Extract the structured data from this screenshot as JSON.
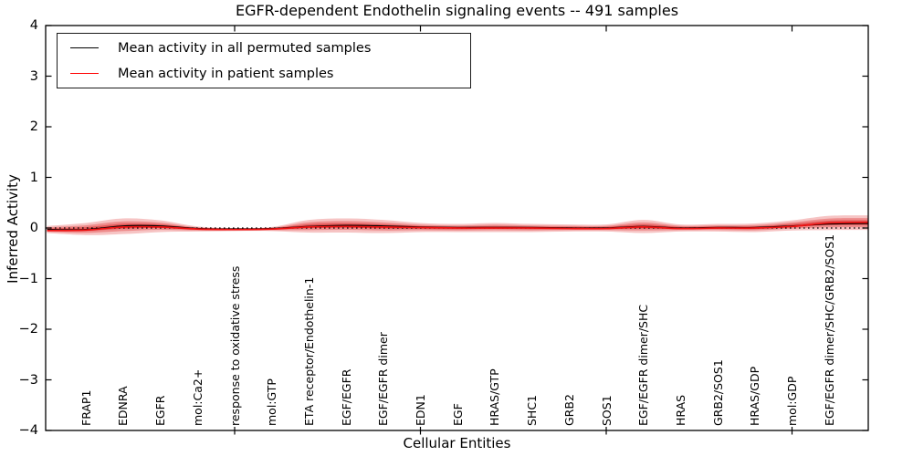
{
  "figure": {
    "title": "EGFR-dependent Endothelin signaling events -- 491 samples",
    "xlabel": "Cellular Entities",
    "ylabel": "Inferred Activity"
  },
  "legend": {
    "items": [
      {
        "label": "Mean activity in all permuted samples",
        "color": "#000000"
      },
      {
        "label": "Mean activity in patient samples",
        "color": "#ff0000"
      }
    ]
  },
  "axes": {
    "ytick_labels": [
      "4",
      "3",
      "2",
      "1",
      "0",
      "−1",
      "−2",
      "−3",
      "−4"
    ],
    "ytick_values": [
      4,
      3,
      2,
      1,
      0,
      -1,
      -2,
      -3,
      -4
    ],
    "xtick_values": [
      5,
      10,
      15,
      20
    ],
    "ylim": [
      -4,
      4
    ]
  },
  "chart_data": {
    "type": "line",
    "title": "EGFR-dependent Endothelin signaling events -- 491 samples",
    "xlabel": "Cellular Entities",
    "ylabel": "Inferred Activity",
    "ylim": [
      -4,
      4
    ],
    "grid": false,
    "legend_position": "upper left",
    "zero_line": {
      "style": "dotted",
      "color": "#000000",
      "y": 0
    },
    "categories": [
      "FRAP1",
      "EDNRA",
      "EGFR",
      "mol:Ca2+",
      "response to oxidative stress",
      "mol:GTP",
      "ETA receptor/Endothelin-1",
      "EGF/EGFR",
      "EGF/EGFR dimer",
      "EDN1",
      "EGF",
      "HRAS/GTP",
      "SHC1",
      "GRB2",
      "SOS1",
      "EGF/EGFR dimer/SHC",
      "HRAS",
      "GRB2/SOS1",
      "HRAS/GDP",
      "mol:GDP",
      "EGF/EGFR dimer/SHC/GRB2/SOS1"
    ],
    "x": [
      -0.05,
      1,
      2,
      3,
      4,
      5,
      6,
      7,
      8,
      9,
      10,
      11,
      12,
      13,
      14,
      15,
      16,
      17,
      18,
      19,
      20,
      21,
      22.05
    ],
    "series": [
      {
        "name": "Mean activity in all permuted samples",
        "color": "#000000",
        "values": [
          -0.03,
          -0.03,
          0.04,
          0.04,
          -0.01,
          -0.02,
          -0.01,
          0.03,
          0.05,
          0.04,
          0.02,
          0.01,
          0.01,
          0.01,
          0.0,
          0.0,
          0.03,
          0.0,
          0.01,
          0.01,
          0.04,
          0.08,
          0.09
        ]
      },
      {
        "name": "Mean activity in patient samples",
        "color": "#ee1111",
        "values": [
          -0.05,
          -0.04,
          0.02,
          0.02,
          -0.02,
          -0.03,
          -0.02,
          0.02,
          0.03,
          0.02,
          0.01,
          0.0,
          0.0,
          0.0,
          -0.01,
          -0.01,
          0.02,
          -0.01,
          0.0,
          0.0,
          0.03,
          0.1,
          0.11
        ]
      }
    ],
    "band": {
      "name": "patient sample activity spread",
      "color": "#dd3c3c",
      "upper": [
        0.04,
        0.1,
        0.19,
        0.15,
        0.03,
        0.0,
        0.02,
        0.16,
        0.19,
        0.16,
        0.1,
        0.08,
        0.1,
        0.08,
        0.07,
        0.07,
        0.16,
        0.07,
        0.08,
        0.09,
        0.15,
        0.24,
        0.25
      ],
      "lower": [
        -0.1,
        -0.14,
        -0.12,
        -0.08,
        -0.07,
        -0.06,
        -0.06,
        -0.09,
        -0.09,
        -0.1,
        -0.08,
        -0.08,
        -0.08,
        -0.08,
        -0.07,
        -0.07,
        -0.1,
        -0.07,
        -0.07,
        -0.08,
        -0.05,
        -0.04,
        -0.04
      ]
    }
  }
}
